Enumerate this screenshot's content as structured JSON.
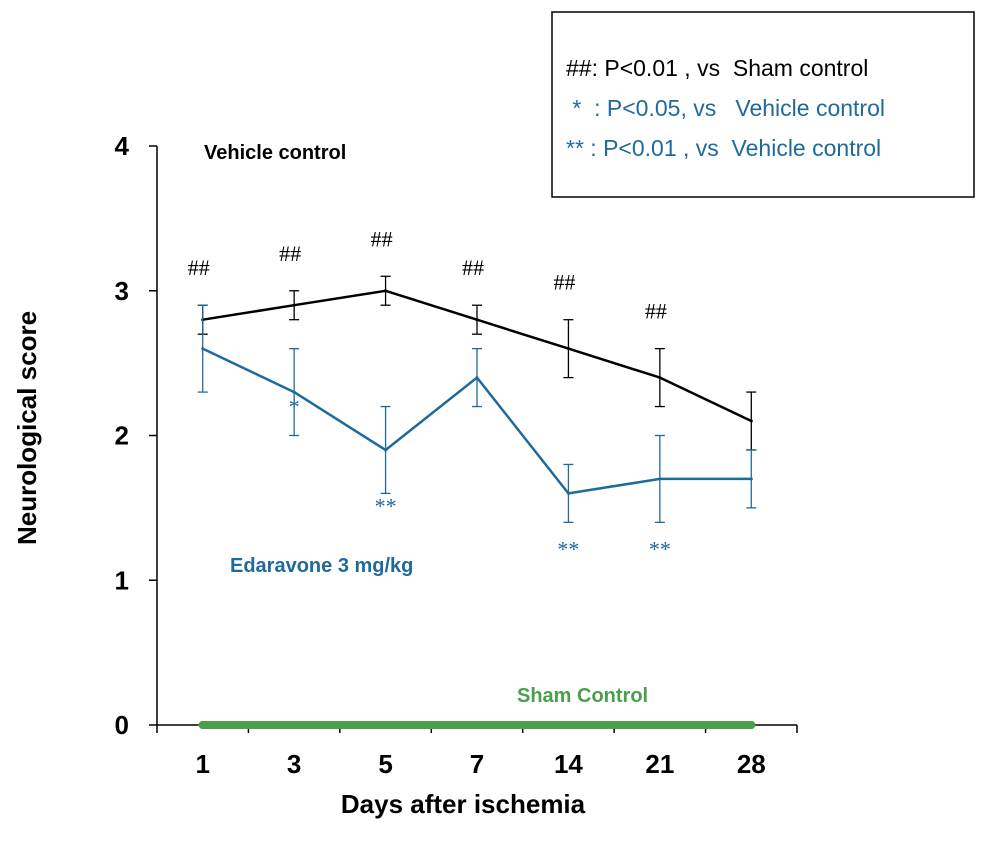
{
  "chart_data": {
    "type": "line",
    "categories": [
      "1",
      "3",
      "5",
      "7",
      "14",
      "21",
      "28"
    ],
    "xlabel": "Days after ischemia",
    "ylabel": "Neurological score",
    "ylim": [
      0,
      4
    ],
    "yticks": [
      "0",
      "1",
      "2",
      "3",
      "4"
    ],
    "grid": false,
    "series": [
      {
        "name": "Vehicle control",
        "color": "#000000",
        "values": [
          2.8,
          2.9,
          3.0,
          2.8,
          2.6,
          2.4,
          2.1
        ],
        "error": [
          0.1,
          0.1,
          0.1,
          0.1,
          0.2,
          0.2,
          0.2
        ],
        "annotations": [
          "##",
          "##",
          "##",
          "##",
          "##",
          "##",
          ""
        ]
      },
      {
        "name": "Edaravone 3 mg/kg",
        "color": "#1f6a9c",
        "values": [
          2.6,
          2.3,
          1.9,
          2.4,
          1.6,
          1.7,
          1.7
        ],
        "error": [
          0.3,
          0.3,
          0.3,
          0.2,
          0.2,
          0.3,
          0.2
        ],
        "annotations": [
          "",
          "*",
          "**",
          "",
          "**",
          "**",
          ""
        ]
      },
      {
        "name": "Sham Control",
        "color": "#4aa04a",
        "values": [
          0,
          0,
          0,
          0,
          0,
          0,
          0
        ]
      }
    ],
    "legend": {
      "position": "top-right",
      "entries": [
        {
          "text": "##: P<0.01 , vs  Sham control",
          "color": "#000000"
        },
        {
          "text": " *  : P<0.05, vs   Vehicle control",
          "color": "#1f6a9c"
        },
        {
          "text": "** : P<0.01 , vs  Vehicle control",
          "color": "#1f6a9c"
        }
      ]
    }
  }
}
